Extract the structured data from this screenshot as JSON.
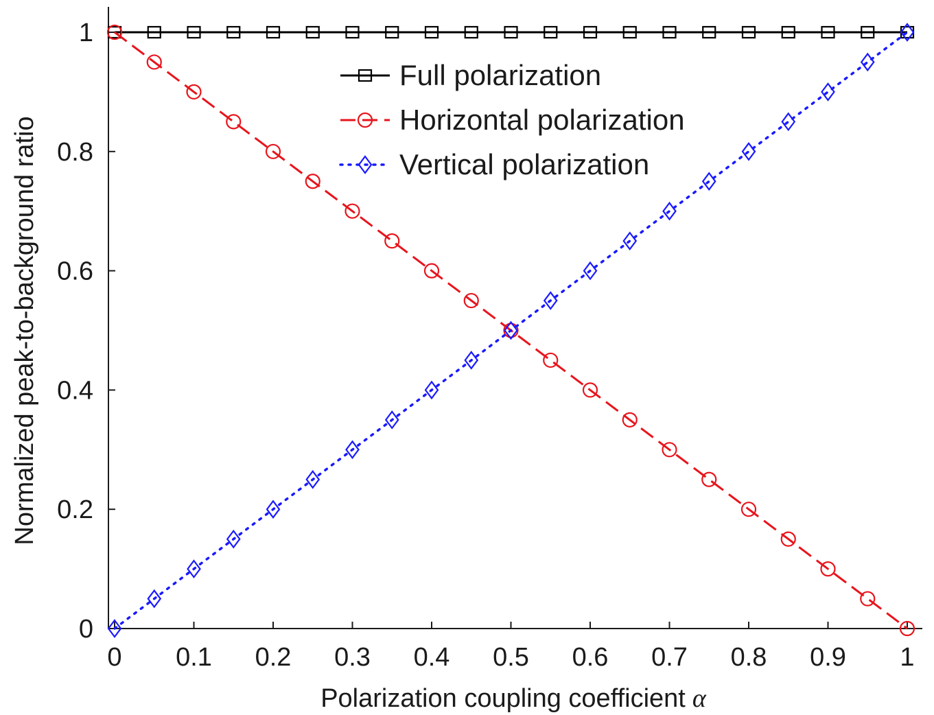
{
  "chart_data": {
    "type": "line",
    "title": "",
    "xlabel": "Polarization coupling coefficient",
    "xlabel_symbol": "α",
    "ylabel": "Normalized peak-to-background ratio",
    "xlim": [
      0,
      1
    ],
    "ylim": [
      0,
      1
    ],
    "grid": false,
    "legend_position": "top-center",
    "x_ticks": [
      "0",
      "0.1",
      "0.2",
      "0.3",
      "0.4",
      "0.5",
      "0.6",
      "0.7",
      "0.8",
      "0.9",
      "1"
    ],
    "y_ticks": [
      "0",
      "0.2",
      "0.4",
      "0.6",
      "0.8",
      "1"
    ],
    "x": [
      0,
      0.05,
      0.1,
      0.15,
      0.2,
      0.25,
      0.3,
      0.35,
      0.4,
      0.45,
      0.5,
      0.55,
      0.6,
      0.65,
      0.7,
      0.75,
      0.8,
      0.85,
      0.9,
      0.95,
      1
    ],
    "series": [
      {
        "name": "Full polarization",
        "color": "#000000",
        "line_style": "solid",
        "marker": "square",
        "values": [
          1,
          1,
          1,
          1,
          1,
          1,
          1,
          1,
          1,
          1,
          1,
          1,
          1,
          1,
          1,
          1,
          1,
          1,
          1,
          1,
          1
        ]
      },
      {
        "name": "Horizontal polarization",
        "color": "#e8141c",
        "line_style": "dashed",
        "marker": "circle",
        "values": [
          1,
          0.95,
          0.9,
          0.85,
          0.8,
          0.75,
          0.7,
          0.65,
          0.6,
          0.55,
          0.5,
          0.45,
          0.4,
          0.35,
          0.3,
          0.25,
          0.2,
          0.15,
          0.1,
          0.05,
          0
        ]
      },
      {
        "name": "Vertical polarization",
        "color": "#1a1aff",
        "line_style": "dotted",
        "marker": "diamond",
        "values": [
          0,
          0.05,
          0.1,
          0.15,
          0.2,
          0.25,
          0.3,
          0.35,
          0.4,
          0.45,
          0.5,
          0.55,
          0.6,
          0.65,
          0.7,
          0.75,
          0.8,
          0.85,
          0.9,
          0.95,
          1
        ]
      }
    ]
  }
}
